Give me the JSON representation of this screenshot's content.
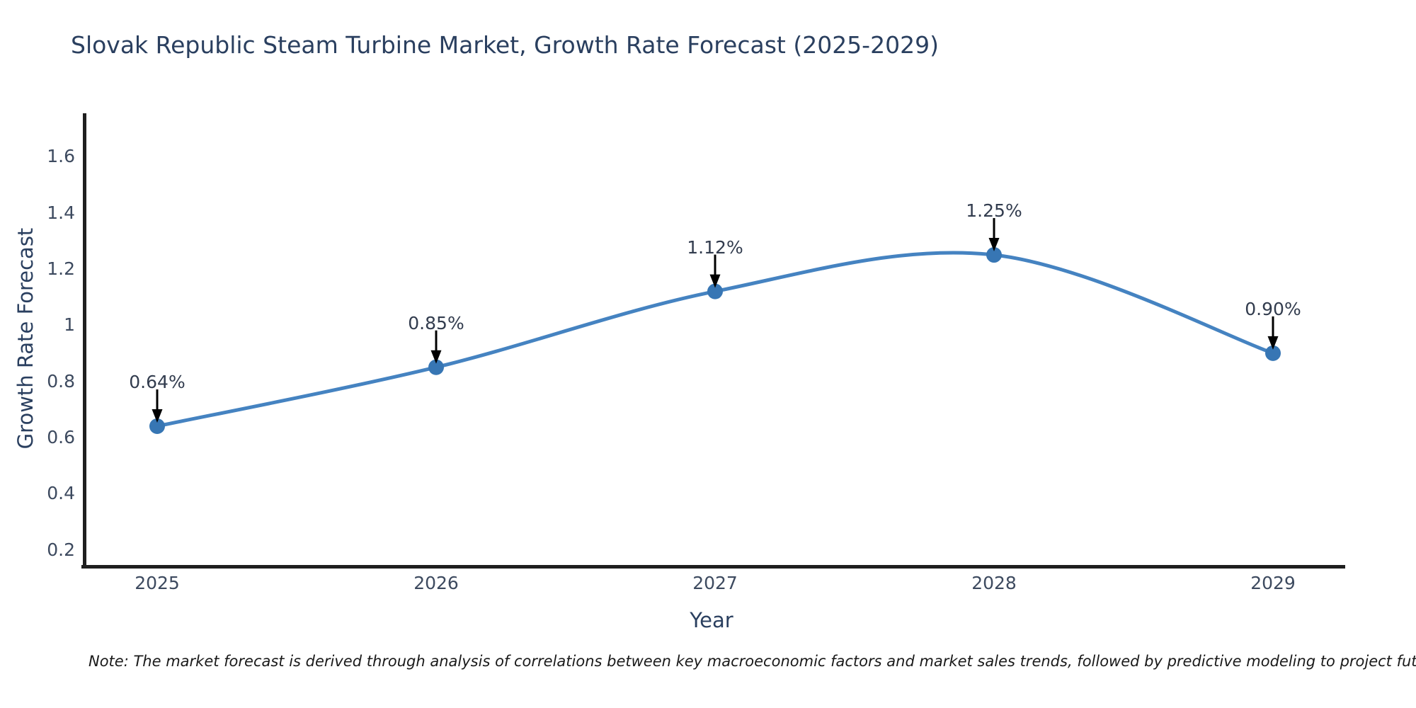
{
  "title": "Slovak Republic Steam Turbine Market, Growth Rate Forecast (2025-2029)",
  "note": "Note: The market forecast is derived through analysis of correlations between key macroeconomic factors and market sales trends, followed by predictive modeling to project future sales",
  "chart_data": {
    "type": "line",
    "title": "Slovak Republic Steam Turbine Market, Growth Rate Forecast (2025-2029)",
    "xlabel": "Year",
    "ylabel": "Growth Rate Forecast",
    "x": [
      2025,
      2026,
      2027,
      2028,
      2029
    ],
    "series": [
      {
        "name": "Growth Rate Forecast",
        "values": [
          0.64,
          0.85,
          1.12,
          1.25,
          0.9
        ]
      }
    ],
    "point_labels": [
      "0.64%",
      "0.85%",
      "1.12%",
      "1.25%",
      "0.90%"
    ],
    "yticks": [
      0.2,
      0.4,
      0.6,
      0.8,
      1,
      1.2,
      1.4,
      1.6
    ],
    "ylim": [
      0.14,
      1.76
    ],
    "grid": false,
    "legend": "none",
    "line_shape": "spline",
    "marker": "circle",
    "annotation_style": "value label with downward arrow to point",
    "colors": {
      "line": "#4583c1",
      "marker": "#3776b4",
      "arrow": "#000000",
      "spine": "#1f1f1f",
      "title_text": "#2a3f5f",
      "tick_text": "#3d4a5f",
      "note_text": "#1a1a1a",
      "background": "#ffffff"
    }
  }
}
